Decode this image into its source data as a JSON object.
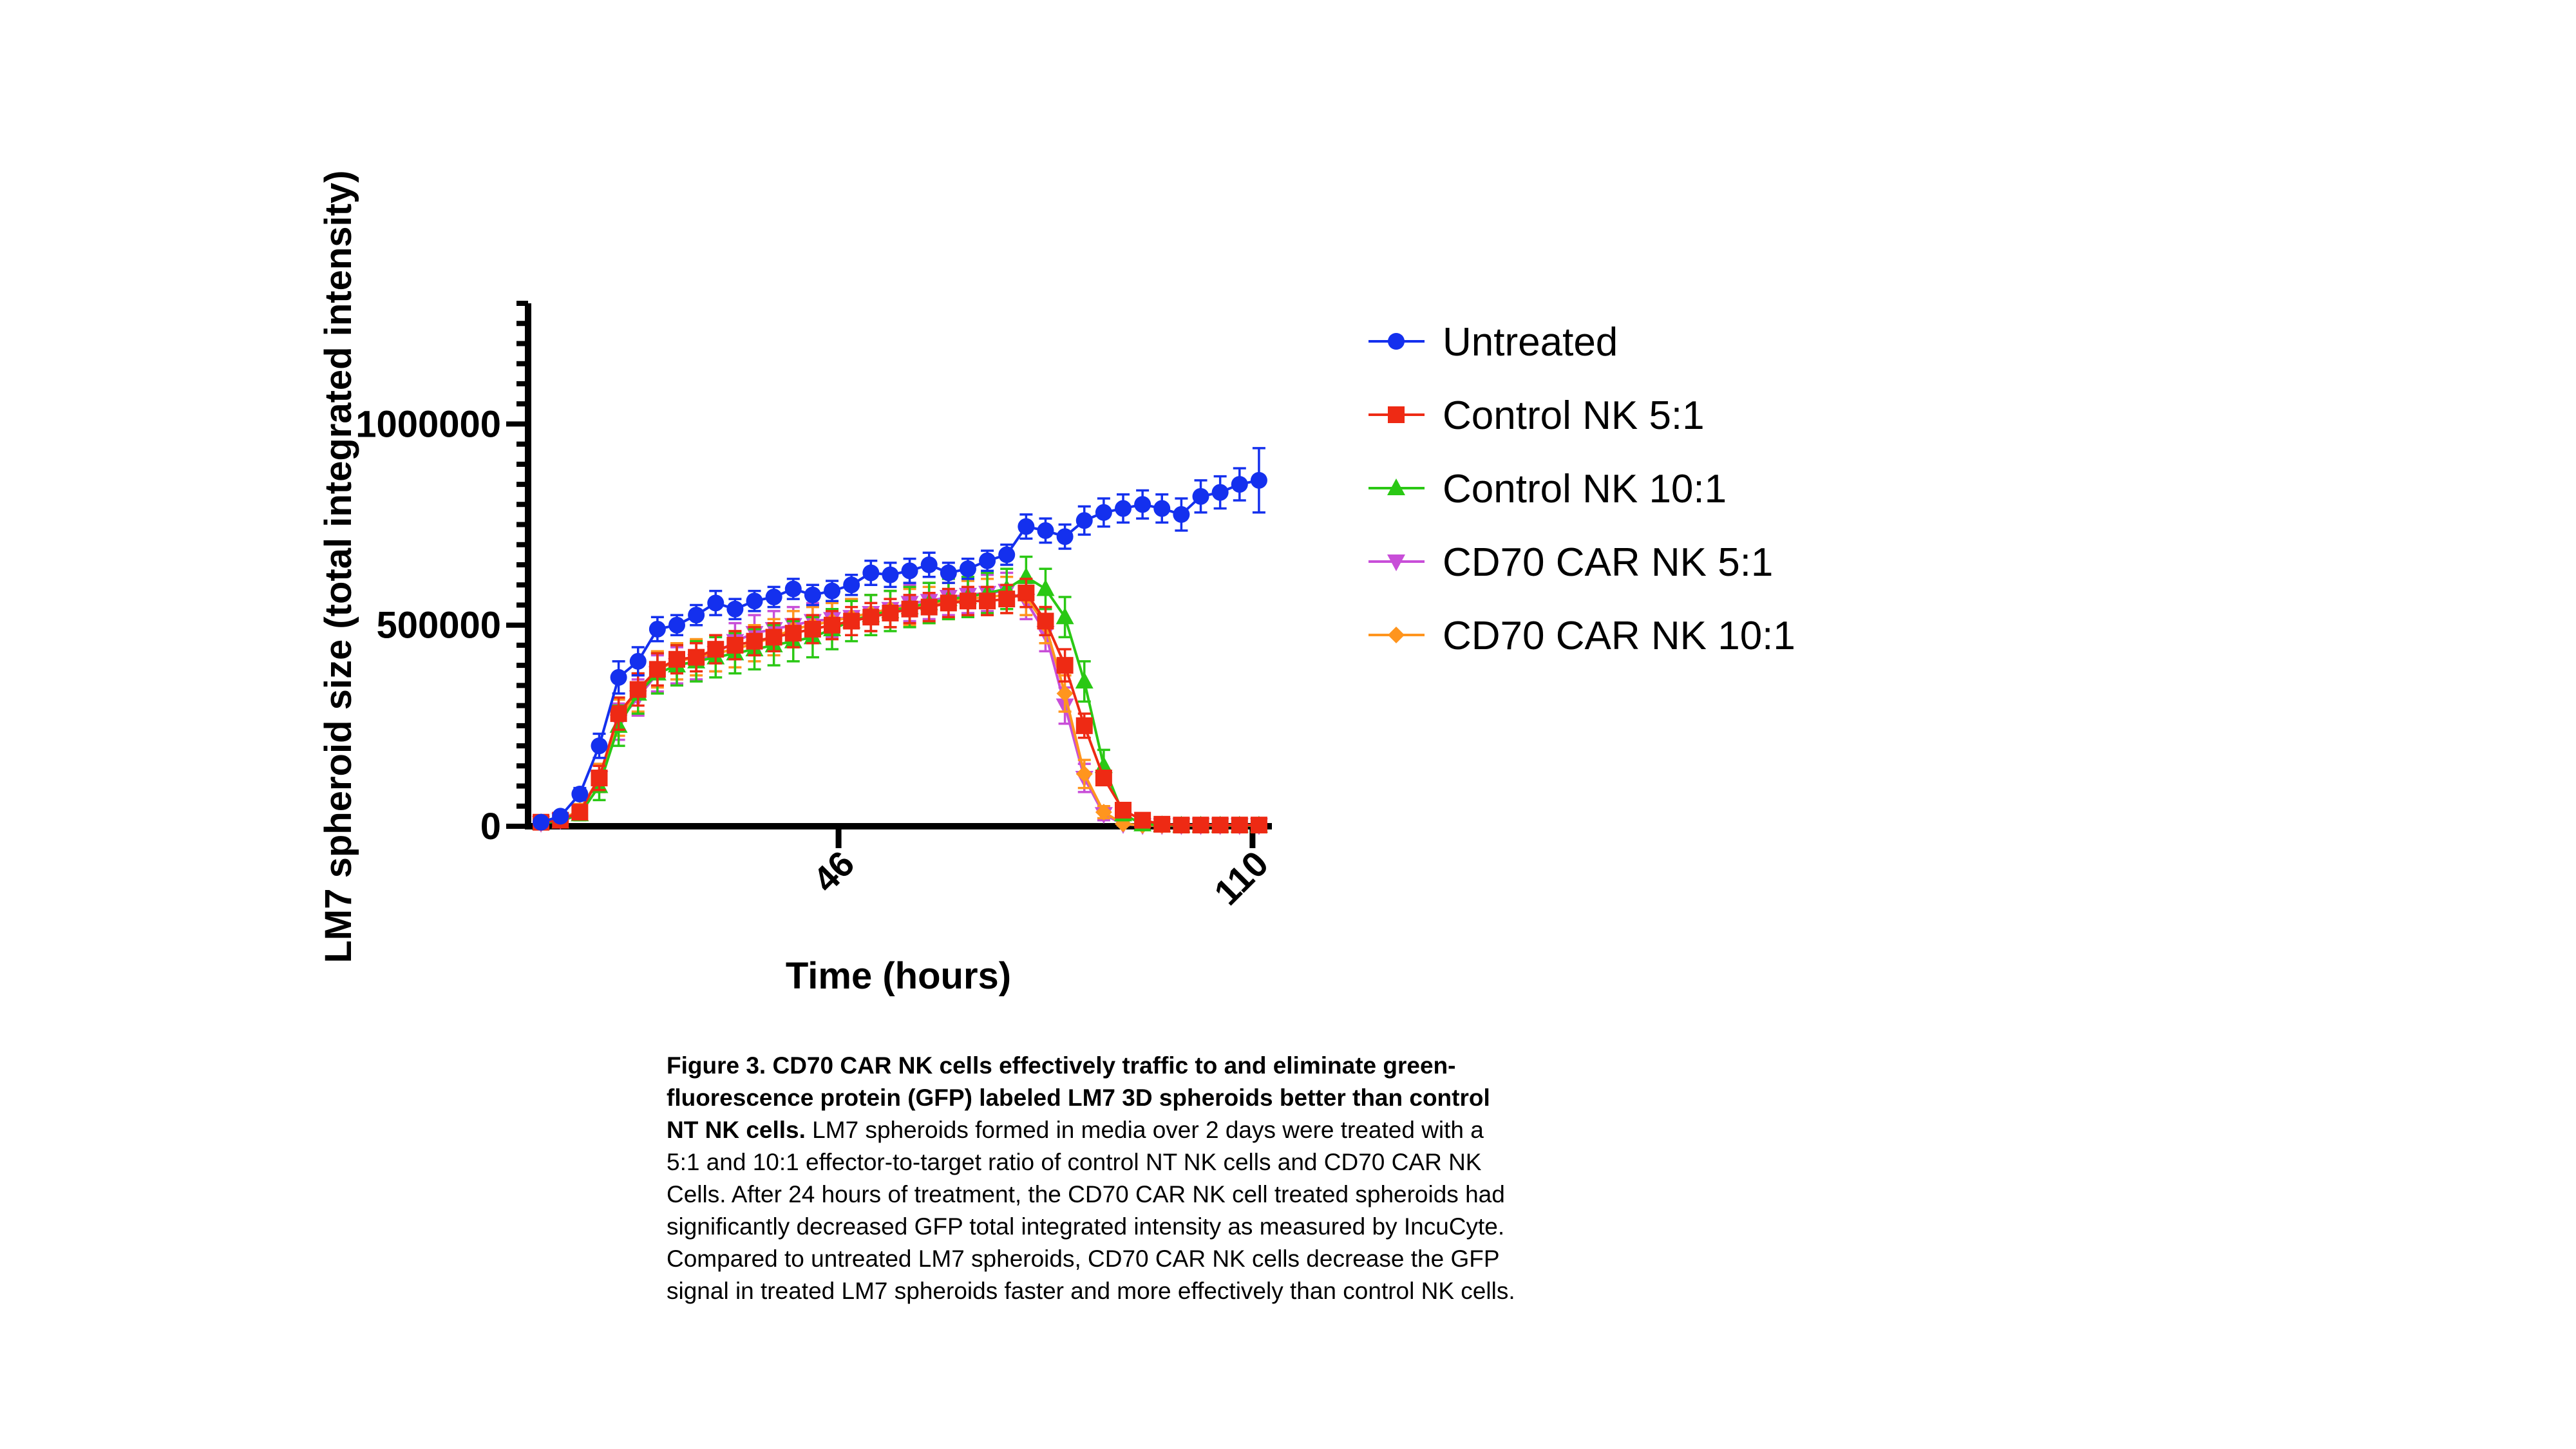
{
  "chart_data": {
    "type": "line",
    "xlabel": "Time (hours)",
    "ylabel": "LM7 spheroid size (total integrated intensity)",
    "x_ticks": [
      46,
      110
    ],
    "x_tick_labels": [
      "46",
      "110"
    ],
    "y_ticks": [
      0,
      500000,
      1000000
    ],
    "y_tick_labels": [
      "0",
      "500000",
      "1000000"
    ],
    "xlim": [
      -2,
      113
    ],
    "ylim": [
      0,
      1300000
    ],
    "y_minor_step": 50000,
    "legend_position": "right",
    "x": [
      0,
      3,
      6,
      9,
      12,
      15,
      18,
      21,
      24,
      27,
      30,
      33,
      36,
      39,
      42,
      45,
      48,
      51,
      54,
      57,
      60,
      63,
      66,
      69,
      72,
      75,
      78,
      81,
      84,
      87,
      90,
      93,
      96,
      99,
      102,
      105,
      108,
      111
    ],
    "series": [
      {
        "name": "Untreated",
        "color": "#1430ee",
        "marker": "circle",
        "values": [
          10000,
          25000,
          80000,
          200000,
          370000,
          410000,
          490000,
          500000,
          525000,
          555000,
          540000,
          560000,
          570000,
          590000,
          575000,
          585000,
          600000,
          630000,
          625000,
          635000,
          650000,
          630000,
          640000,
          660000,
          675000,
          745000,
          735000,
          720000,
          760000,
          780000,
          790000,
          800000,
          790000,
          775000,
          820000,
          830000,
          850000,
          860000
        ],
        "errors": [
          6000,
          8000,
          15000,
          30000,
          40000,
          35000,
          30000,
          25000,
          25000,
          30000,
          25000,
          25000,
          25000,
          25000,
          25000,
          25000,
          25000,
          30000,
          30000,
          30000,
          30000,
          25000,
          25000,
          25000,
          25000,
          30000,
          30000,
          30000,
          35000,
          35000,
          35000,
          35000,
          35000,
          40000,
          40000,
          40000,
          40000,
          80000
        ]
      },
      {
        "name": "Control NK 5:1",
        "color": "#ee2a14",
        "marker": "square",
        "values": [
          10000,
          15000,
          35000,
          120000,
          280000,
          340000,
          390000,
          415000,
          420000,
          440000,
          450000,
          460000,
          470000,
          480000,
          490000,
          500000,
          510000,
          520000,
          530000,
          540000,
          545000,
          555000,
          560000,
          560000,
          565000,
          580000,
          510000,
          400000,
          250000,
          120000,
          40000,
          15000,
          5000,
          3000,
          3000,
          3000,
          3000,
          3000
        ],
        "errors": [
          5000,
          8000,
          15000,
          30000,
          40000,
          40000,
          40000,
          35000,
          35000,
          35000,
          35000,
          35000,
          35000,
          35000,
          35000,
          35000,
          35000,
          35000,
          35000,
          35000,
          35000,
          35000,
          35000,
          35000,
          35000,
          35000,
          35000,
          40000,
          30000,
          15000,
          5000,
          3000,
          2000,
          1000,
          1000,
          1000,
          1000,
          1000
        ]
      },
      {
        "name": "Control NK 10:1",
        "color": "#2ac814",
        "marker": "triangle",
        "values": [
          8000,
          12000,
          30000,
          100000,
          250000,
          330000,
          380000,
          400000,
          410000,
          420000,
          430000,
          440000,
          450000,
          460000,
          470000,
          490000,
          510000,
          525000,
          535000,
          545000,
          555000,
          565000,
          570000,
          580000,
          590000,
          620000,
          590000,
          520000,
          360000,
          150000,
          30000,
          5000,
          3000,
          2000,
          2000,
          2000,
          2000,
          2000
        ],
        "errors": [
          5000,
          8000,
          15000,
          35000,
          50000,
          50000,
          50000,
          50000,
          50000,
          50000,
          50000,
          50000,
          50000,
          50000,
          50000,
          50000,
          50000,
          50000,
          50000,
          50000,
          50000,
          50000,
          50000,
          50000,
          50000,
          50000,
          50000,
          50000,
          50000,
          40000,
          15000,
          3000,
          1000,
          1000,
          1000,
          1000,
          1000,
          1000
        ]
      },
      {
        "name": "CD70 CAR NK 5:1",
        "color": "#c84ed8",
        "marker": "triangle-down",
        "values": [
          8000,
          15000,
          40000,
          120000,
          260000,
          320000,
          380000,
          400000,
          410000,
          430000,
          460000,
          480000,
          490000,
          500000,
          510000,
          515000,
          520000,
          530000,
          540000,
          555000,
          560000,
          570000,
          575000,
          580000,
          585000,
          560000,
          480000,
          300000,
          120000,
          30000,
          5000,
          2000,
          2000,
          2000,
          2000,
          2000,
          2000,
          2000
        ],
        "errors": [
          5000,
          8000,
          15000,
          35000,
          45000,
          45000,
          45000,
          45000,
          45000,
          45000,
          45000,
          45000,
          45000,
          45000,
          45000,
          45000,
          45000,
          45000,
          45000,
          45000,
          45000,
          45000,
          45000,
          45000,
          45000,
          45000,
          45000,
          45000,
          35000,
          15000,
          3000,
          1000,
          1000,
          1000,
          1000,
          1000,
          1000,
          1000
        ]
      },
      {
        "name": "CD70 CAR NK 10:1",
        "color": "#ff951e",
        "marker": "diamond",
        "values": [
          8000,
          15000,
          40000,
          120000,
          270000,
          330000,
          390000,
          410000,
          420000,
          430000,
          440000,
          455000,
          470000,
          490000,
          500000,
          510000,
          520000,
          530000,
          540000,
          545000,
          550000,
          560000,
          565000,
          570000,
          575000,
          570000,
          500000,
          330000,
          130000,
          35000,
          6000,
          2000,
          2000,
          2000,
          2000,
          2000,
          2000,
          2000
        ],
        "errors": [
          5000,
          8000,
          15000,
          35000,
          45000,
          45000,
          45000,
          45000,
          45000,
          45000,
          45000,
          45000,
          45000,
          45000,
          45000,
          45000,
          45000,
          45000,
          45000,
          45000,
          45000,
          45000,
          45000,
          45000,
          45000,
          45000,
          45000,
          45000,
          35000,
          15000,
          3000,
          1000,
          1000,
          1000,
          1000,
          1000,
          1000,
          1000
        ]
      }
    ]
  },
  "caption": {
    "bold": "Figure 3. CD70 CAR NK cells effectively traffic to and eliminate green-fluorescence protein (GFP) labeled LM7 3D spheroids better than control NT NK cells.",
    "text": " LM7 spheroids formed in media over 2 days were treated with a 5:1 and 10:1 effector-to-target ratio of control NT NK cells and CD70 CAR NK Cells. After 24 hours of treatment, the CD70 CAR NK cell treated spheroids had significantly decreased GFP total integrated intensity as measured by IncuCyte. Compared to untreated LM7 spheroids, CD70 CAR NK cells decrease the GFP signal in treated LM7 spheroids faster and more effectively than control NK cells."
  }
}
